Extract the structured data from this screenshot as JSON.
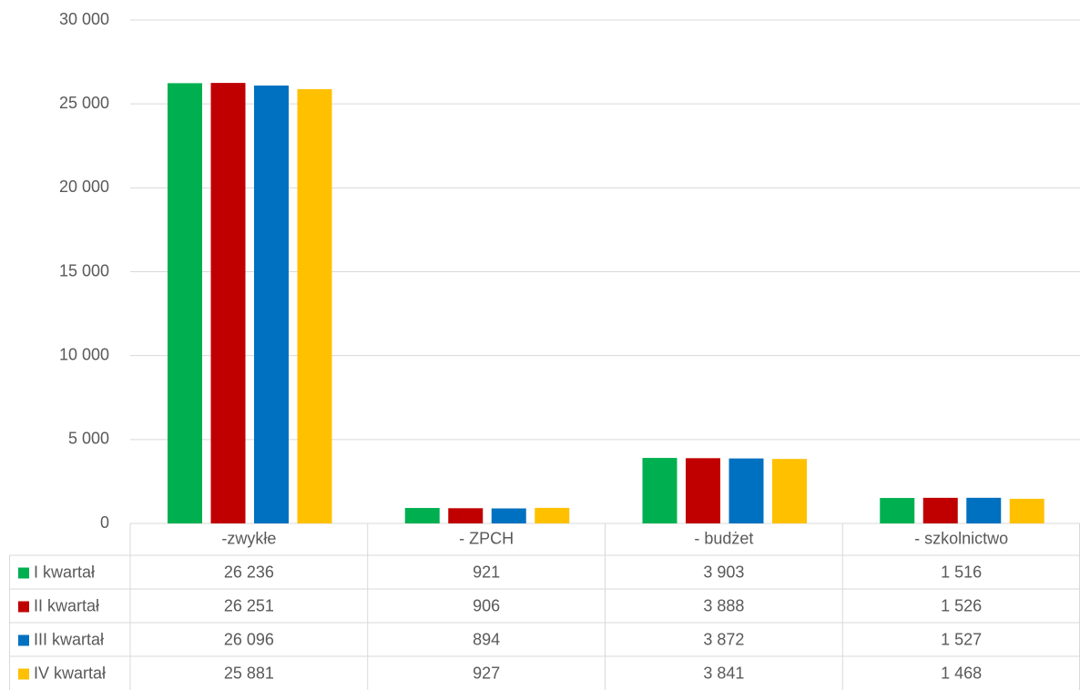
{
  "chart_data": {
    "type": "bar",
    "categories": [
      "-zwykłe",
      "- ZPCH",
      "- budżet",
      "- szkolnictwo"
    ],
    "series": [
      {
        "name": "I kwartał",
        "color": "#00b050",
        "values": [
          26236,
          921,
          3903,
          1516
        ],
        "value_labels": [
          "26 236",
          "921",
          "3 903",
          "1 516"
        ]
      },
      {
        "name": "II kwartał",
        "color": "#c00000",
        "values": [
          26251,
          906,
          3888,
          1526
        ],
        "value_labels": [
          "26 251",
          "906",
          "3 888",
          "1 526"
        ]
      },
      {
        "name": "III kwartał",
        "color": "#0070c0",
        "values": [
          26096,
          894,
          3872,
          1527
        ],
        "value_labels": [
          "26 096",
          "894",
          "3 872",
          "1 527"
        ]
      },
      {
        "name": "IV kwartał",
        "color": "#ffc000",
        "values": [
          25881,
          927,
          3841,
          1468
        ],
        "value_labels": [
          "25 881",
          "927",
          "3 841",
          "1 468"
        ]
      }
    ],
    "ylim": [
      0,
      30000
    ],
    "yticks": [
      0,
      {
        "value": 5000,
        "label": "5 000"
      },
      {
        "value": 10000,
        "label": "10 000"
      },
      {
        "value": 15000,
        "label": "15 000"
      },
      {
        "value": 20000,
        "label": "20 000"
      },
      {
        "value": 25000,
        "label": "25 000"
      },
      {
        "value": 30000,
        "label": "30 000"
      }
    ],
    "grid": true
  }
}
